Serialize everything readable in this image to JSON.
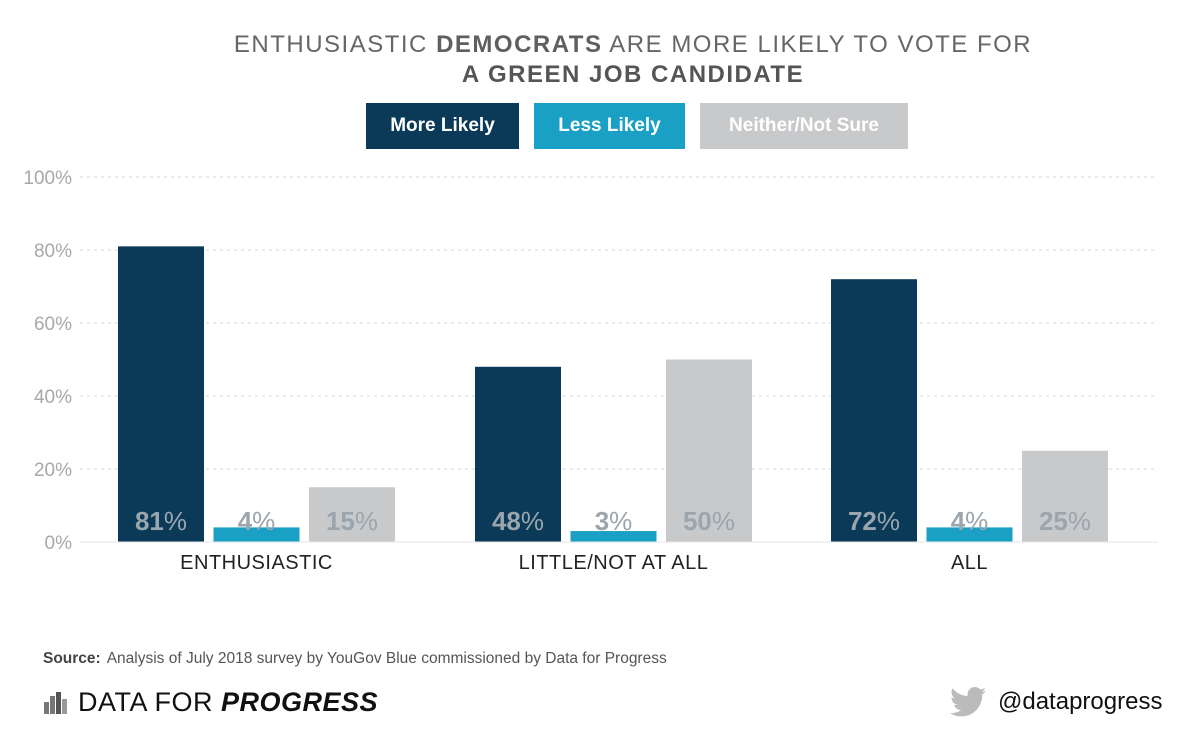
{
  "title": {
    "line1_prefix": "ENTHUSIASTIC ",
    "line1_bold": "DEMOCRATS",
    "line1_suffix": " ARE MORE LIKELY TO VOTE FOR",
    "line2": "A GREEN JOB CANDIDATE"
  },
  "legend": [
    "More Likely",
    "Less Likely",
    "Neither/Not Sure"
  ],
  "colors": {
    "more_likely": "#0a3a57",
    "less_likely": "#1aa0c4",
    "neither": "#c8c9cb",
    "data_label": "#9aa5ad"
  },
  "chart_data": {
    "type": "bar",
    "categories": [
      "ENTHUSIASTIC",
      "LITTLE/NOT AT ALL",
      "ALL"
    ],
    "series": [
      {
        "name": "More Likely",
        "values": [
          81,
          48,
          72
        ]
      },
      {
        "name": "Less Likely",
        "values": [
          4,
          3,
          4
        ]
      },
      {
        "name": "Neither/Not Sure",
        "values": [
          15,
          50,
          25
        ]
      }
    ],
    "y_ticks": [
      "0%",
      "20%",
      "40%",
      "60%",
      "80%",
      "100%"
    ],
    "ylim": [
      0,
      100
    ],
    "grid": true,
    "legend_position": "top"
  },
  "source": {
    "label": "Source:",
    "text": "Analysis of July 2018 survey by YouGov Blue commissioned by Data for Progress"
  },
  "brand": {
    "prefix": "DATA FOR ",
    "bold": "PROGRESS"
  },
  "handle": "@dataprogress"
}
